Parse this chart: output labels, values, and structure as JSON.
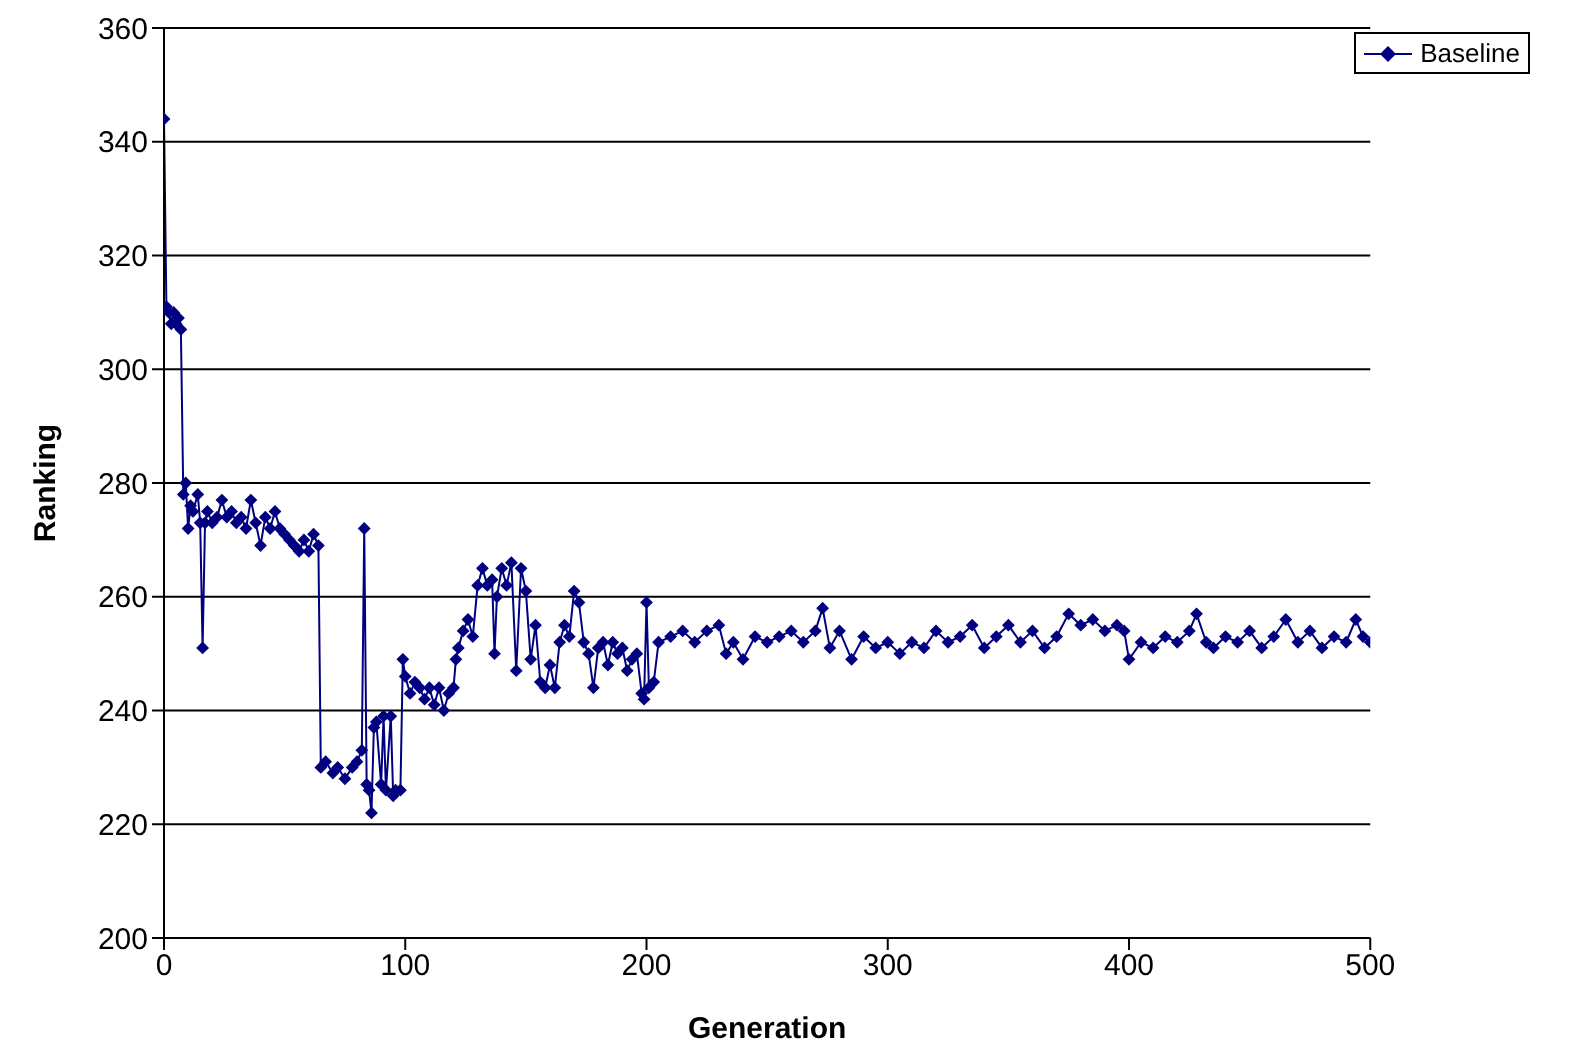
{
  "chart_data": {
    "type": "line",
    "xlabel": "Generation",
    "ylabel": "Ranking",
    "xlim": [
      0,
      500
    ],
    "ylim": [
      200,
      360
    ],
    "xticks": [
      0,
      100,
      200,
      300,
      400,
      500
    ],
    "yticks": [
      200,
      220,
      240,
      260,
      280,
      300,
      320,
      340,
      360
    ],
    "grid": "y",
    "legend": "top right",
    "marker": "diamond",
    "line_style": "solid",
    "x": [
      0,
      1,
      2,
      3,
      4,
      5,
      6,
      7,
      8,
      9,
      10,
      11,
      12,
      14,
      15,
      16,
      17,
      18,
      20,
      22,
      24,
      26,
      28,
      30,
      32,
      34,
      36,
      38,
      40,
      42,
      44,
      46,
      48,
      50,
      52,
      54,
      56,
      58,
      60,
      62,
      64,
      65,
      67,
      70,
      72,
      75,
      78,
      80,
      82,
      83,
      84,
      85,
      86,
      87,
      88,
      90,
      91,
      92,
      94,
      95,
      96,
      98,
      99,
      100,
      102,
      104,
      106,
      108,
      110,
      112,
      114,
      116,
      118,
      120,
      121,
      122,
      124,
      126,
      128,
      130,
      132,
      134,
      136,
      137,
      138,
      140,
      142,
      144,
      146,
      148,
      150,
      152,
      154,
      156,
      158,
      160,
      162,
      164,
      166,
      168,
      170,
      172,
      174,
      176,
      178,
      180,
      182,
      184,
      186,
      188,
      190,
      192,
      194,
      196,
      198,
      199,
      200,
      201,
      203,
      205,
      210,
      215,
      220,
      225,
      230,
      233,
      236,
      240,
      245,
      250,
      255,
      260,
      265,
      270,
      273,
      276,
      280,
      285,
      290,
      295,
      300,
      305,
      310,
      315,
      320,
      325,
      330,
      335,
      340,
      345,
      350,
      355,
      360,
      365,
      370,
      375,
      380,
      385,
      390,
      395,
      398,
      400,
      405,
      410,
      415,
      420,
      425,
      428,
      432,
      435,
      440,
      445,
      450,
      455,
      460,
      465,
      470,
      475,
      480,
      485,
      490,
      494,
      497,
      500
    ],
    "series": [
      {
        "name": "Baseline",
        "color": "#000080",
        "values": [
          344,
          311,
          310,
          308,
          310,
          308,
          309,
          307,
          278,
          280,
          272,
          276,
          275,
          278,
          273,
          251,
          273,
          275,
          273,
          274,
          277,
          274,
          275,
          273,
          274,
          272,
          277,
          273,
          269,
          274,
          272,
          275,
          272,
          271,
          270,
          269,
          268,
          270,
          268,
          271,
          269,
          230,
          231,
          229,
          230,
          228,
          230,
          231,
          233,
          272,
          227,
          226,
          222,
          237,
          238,
          227,
          239,
          226,
          239,
          225,
          226,
          226,
          249,
          246,
          243,
          245,
          244,
          242,
          244,
          241,
          244,
          240,
          243,
          244,
          249,
          251,
          254,
          256,
          253,
          262,
          265,
          262,
          263,
          250,
          260,
          265,
          262,
          266,
          247,
          265,
          261,
          249,
          255,
          245,
          244,
          248,
          244,
          252,
          255,
          253,
          261,
          259,
          252,
          250,
          244,
          251,
          252,
          248,
          252,
          250,
          251,
          247,
          249,
          250,
          243,
          242,
          259,
          244,
          245,
          252,
          253,
          254,
          252,
          254,
          255,
          250,
          252,
          249,
          253,
          252,
          253,
          254,
          252,
          254,
          258,
          251,
          254,
          249,
          253,
          251,
          252,
          250,
          252,
          251,
          254,
          252,
          253,
          255,
          251,
          253,
          255,
          252,
          254,
          251,
          253,
          257,
          255,
          256,
          254,
          255,
          254,
          249,
          252,
          251,
          253,
          252,
          254,
          257,
          252,
          251,
          253,
          252,
          254,
          251,
          253,
          256,
          252,
          254,
          251,
          253,
          252,
          256,
          253,
          252
        ]
      }
    ]
  }
}
